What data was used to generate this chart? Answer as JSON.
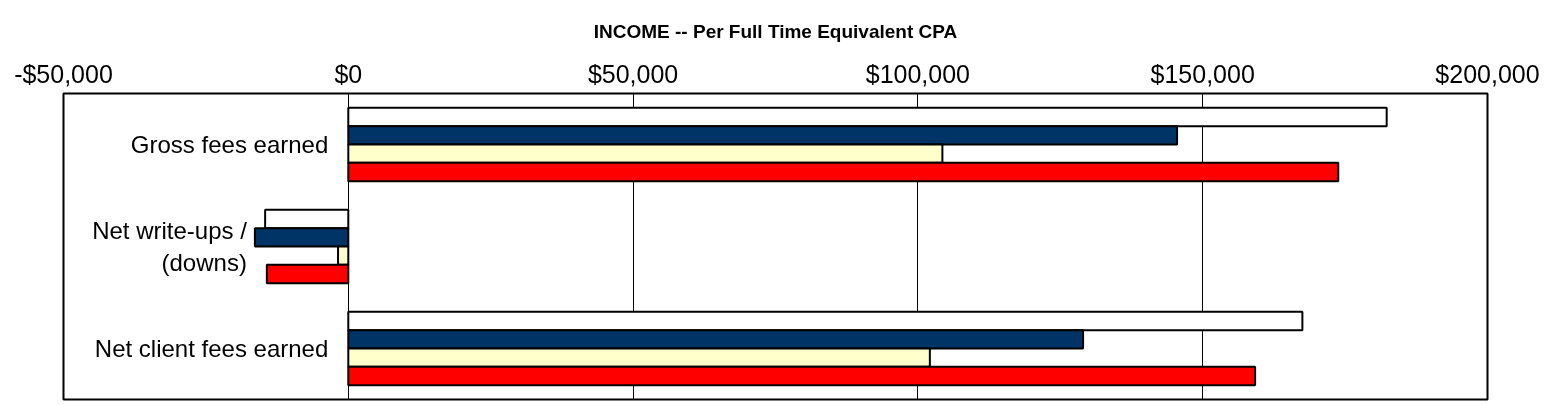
{
  "chart_data": {
    "type": "bar",
    "orientation": "horizontal",
    "title": "INCOME -- Per Full Time Equivalent CPA",
    "categories": [
      "Gross fees earned",
      "Net write-ups / (downs)",
      "Net client fees earned"
    ],
    "series": [
      {
        "color": "#ffffff",
        "values": [
          182300,
          -14600,
          167500
        ]
      },
      {
        "color": "#003366",
        "values": [
          145500,
          -16400,
          129000
        ]
      },
      {
        "color": "#ffffcc",
        "values": [
          104300,
          -1800,
          102100
        ]
      },
      {
        "color": "#ff0000",
        "values": [
          173800,
          -14300,
          159200
        ]
      }
    ],
    "xlim": [
      -50000,
      200000
    ],
    "xticks": [
      {
        "value": -50000,
        "label": "-$50,000"
      },
      {
        "value": 0,
        "label": "$0"
      },
      {
        "value": 50000,
        "label": "$50,000"
      },
      {
        "value": 100000,
        "label": "$100,000"
      },
      {
        "value": 150000,
        "label": "$150,000"
      },
      {
        "value": 200000,
        "label": "$200,000"
      }
    ],
    "grid": "x"
  }
}
